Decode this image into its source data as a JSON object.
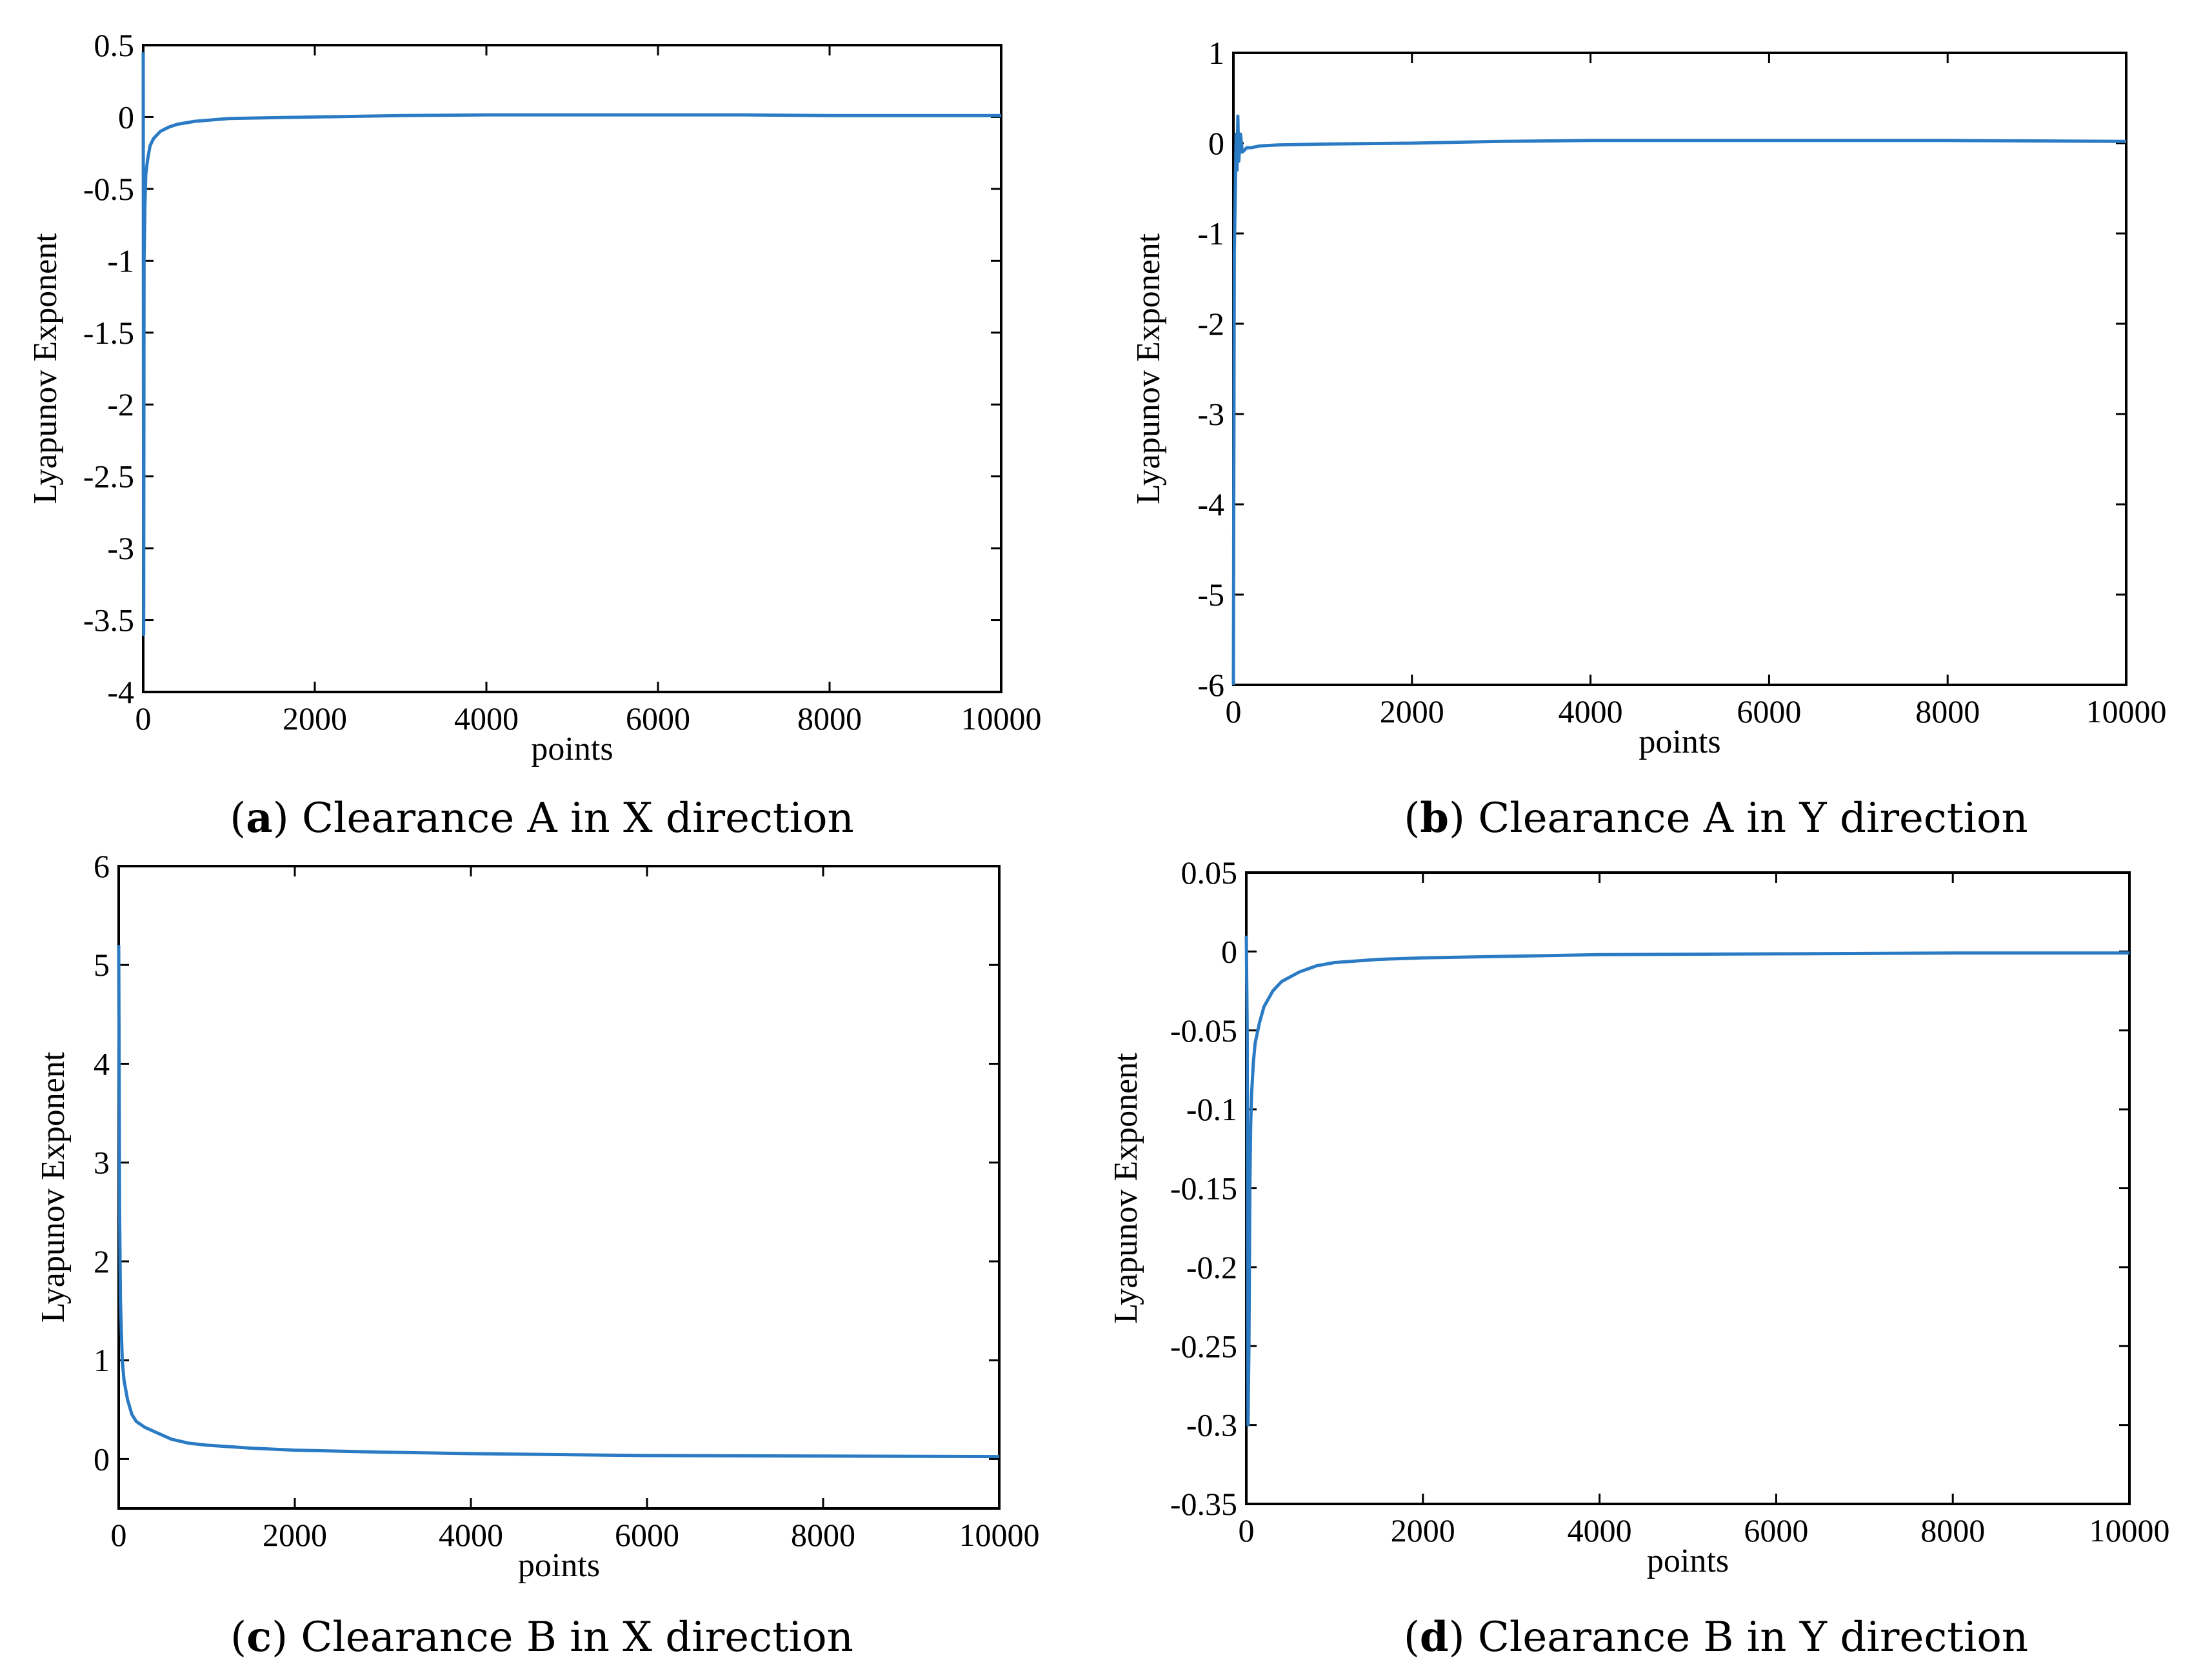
{
  "chart_data": [
    {
      "type": "line",
      "panel": "a",
      "caption_letter": "a",
      "caption_text": "Clearance A in X direction",
      "xlabel": "points",
      "ylabel": "Lyapunov Exponent",
      "xlim": [
        0,
        10000
      ],
      "ylim": [
        -4,
        0.5
      ],
      "xticks": [
        0,
        2000,
        4000,
        6000,
        8000,
        10000
      ],
      "yticks": [
        0.5,
        0,
        -0.5,
        -1,
        -1.5,
        -2,
        -2.5,
        -3,
        -3.5,
        -4
      ],
      "ytick_labels": [
        "0.5",
        "0",
        "-0.5",
        "-1",
        "-1.5",
        "-2",
        "-2.5",
        "-3",
        "-3.5",
        "-4"
      ],
      "series": [
        {
          "name": "Lyapunov exponent",
          "color": "#2a7bc4",
          "x": [
            0,
            5,
            10,
            20,
            30,
            50,
            80,
            120,
            200,
            300,
            400,
            600,
            1000,
            2000,
            3000,
            4000,
            5000,
            6000,
            7000,
            8000,
            9000,
            10000
          ],
          "y": [
            0.45,
            -3.6,
            -1.0,
            -0.6,
            -0.4,
            -0.3,
            -0.2,
            -0.15,
            -0.1,
            -0.07,
            -0.05,
            -0.03,
            -0.01,
            0.0,
            0.01,
            0.015,
            0.015,
            0.015,
            0.015,
            0.01,
            0.01,
            0.01
          ]
        }
      ]
    },
    {
      "type": "line",
      "panel": "b",
      "caption_letter": "b",
      "caption_text": "Clearance A in Y direction",
      "xlabel": "points",
      "ylabel": "Lyapunov Exponent",
      "xlim": [
        0,
        10000
      ],
      "ylim": [
        -6,
        1
      ],
      "xticks": [
        0,
        2000,
        4000,
        6000,
        8000,
        10000
      ],
      "yticks": [
        1,
        0,
        -1,
        -2,
        -3,
        -4,
        -5,
        -6
      ],
      "ytick_labels": [
        "1",
        "0",
        "-1",
        "-2",
        "-3",
        "-4",
        "-5",
        "-6"
      ],
      "series": [
        {
          "name": "Lyapunov exponent",
          "color": "#2a7bc4",
          "x": [
            0,
            5,
            10,
            20,
            30,
            40,
            50,
            60,
            80,
            100,
            150,
            200,
            300,
            500,
            1000,
            2000,
            3000,
            4000,
            6000,
            8000,
            10000
          ],
          "y": [
            -6.0,
            -3.5,
            -1.2,
            -0.6,
            0.1,
            -0.3,
            0.3,
            -0.2,
            0.1,
            -0.1,
            -0.05,
            -0.05,
            -0.03,
            -0.02,
            -0.01,
            0.0,
            0.02,
            0.03,
            0.03,
            0.03,
            0.02
          ]
        }
      ]
    },
    {
      "type": "line",
      "panel": "c",
      "caption_letter": "c",
      "caption_text": "Clearance B in X direction",
      "xlabel": "points",
      "ylabel": "Lyapunov Exponent",
      "xlim": [
        0,
        10000
      ],
      "ylim": [
        -0.5,
        6
      ],
      "xticks": [
        0,
        2000,
        4000,
        6000,
        8000,
        10000
      ],
      "yticks": [
        6,
        5,
        4,
        3,
        2,
        1,
        0
      ],
      "ytick_labels": [
        "6",
        "5",
        "4",
        "3",
        "2",
        "1",
        "0"
      ],
      "series": [
        {
          "name": "Lyapunov exponent",
          "color": "#2a7bc4",
          "x": [
            0,
            5,
            10,
            20,
            40,
            60,
            100,
            150,
            200,
            300,
            400,
            600,
            800,
            1000,
            1500,
            2000,
            3000,
            4000,
            5000,
            6000,
            8000,
            10000
          ],
          "y": [
            5.2,
            4.0,
            2.5,
            1.6,
            1.0,
            0.8,
            0.6,
            0.45,
            0.38,
            0.32,
            0.28,
            0.2,
            0.16,
            0.14,
            0.11,
            0.09,
            0.07,
            0.055,
            0.045,
            0.035,
            0.03,
            0.025
          ]
        }
      ]
    },
    {
      "type": "line",
      "panel": "d",
      "caption_letter": "d",
      "caption_text": "Clearance B in Y direction",
      "xlabel": "points",
      "ylabel": "Lyapunov Exponent",
      "xlim": [
        0,
        10000
      ],
      "ylim": [
        -0.35,
        0.05
      ],
      "xticks": [
        0,
        2000,
        4000,
        6000,
        8000,
        10000
      ],
      "yticks": [
        0.05,
        0,
        -0.05,
        -0.1,
        -0.15,
        -0.2,
        -0.25,
        -0.3,
        -0.35
      ],
      "ytick_labels": [
        "0.05",
        "0",
        "-0.05",
        "-0.1",
        "-0.15",
        "-0.2",
        "-0.25",
        "-0.3",
        "-0.35"
      ],
      "series": [
        {
          "name": "Lyapunov exponent",
          "color": "#2a7bc4",
          "x": [
            0,
            10,
            20,
            30,
            40,
            50,
            60,
            80,
            100,
            150,
            200,
            300,
            400,
            600,
            800,
            1000,
            1500,
            2000,
            3000,
            4000,
            6000,
            8000,
            10000
          ],
          "y": [
            0.01,
            -0.05,
            -0.3,
            -0.25,
            -0.15,
            -0.11,
            -0.09,
            -0.07,
            -0.058,
            -0.045,
            -0.035,
            -0.025,
            -0.019,
            -0.013,
            -0.009,
            -0.007,
            -0.005,
            -0.004,
            -0.003,
            -0.002,
            -0.0015,
            -0.001,
            -0.001
          ]
        }
      ]
    }
  ]
}
